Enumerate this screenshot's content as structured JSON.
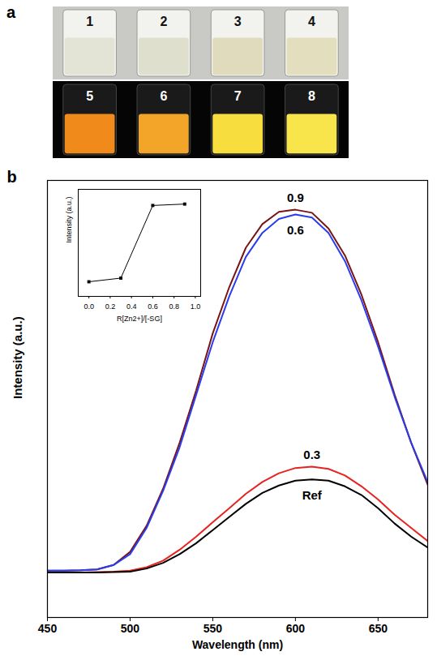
{
  "panel_a": {
    "panel_label": "a",
    "vials": [
      {
        "label": "1",
        "color": "#e4e4d6"
      },
      {
        "label": "2",
        "color": "#dedfcc"
      },
      {
        "label": "3",
        "color": "#e0dbbd"
      },
      {
        "label": "4",
        "color": "#e3dfbe"
      },
      {
        "label": "5",
        "color": "#f08a1a"
      },
      {
        "label": "6",
        "color": "#f3a52a"
      },
      {
        "label": "7",
        "color": "#f7de3e"
      },
      {
        "label": "8",
        "color": "#f8e54c"
      }
    ]
  },
  "chart_data": [
    {
      "type": "line",
      "panel_label": "b",
      "xlabel": "Wavelength (nm)",
      "ylabel": "Intensity (a.u.)",
      "x": [
        450,
        460,
        470,
        480,
        490,
        500,
        510,
        520,
        530,
        540,
        550,
        560,
        570,
        580,
        590,
        600,
        610,
        620,
        630,
        640,
        650,
        660,
        670,
        680
      ],
      "xlim": [
        450,
        680
      ],
      "xticks": [
        450,
        500,
        550,
        600,
        650
      ],
      "ylim": [
        0,
        100
      ],
      "yticks": [],
      "tick_labels": "x",
      "series": [
        {
          "name": "0.9",
          "color": "#7a1414",
          "values": [
            10.7,
            10.7,
            10.8,
            11.0,
            12.0,
            15.0,
            21.0,
            29.5,
            40,
            52,
            65,
            75.6,
            84.6,
            90,
            92.8,
            93.3,
            92.6,
            89,
            82.8,
            73.8,
            63,
            51,
            40,
            30.4
          ]
        },
        {
          "name": "0.6",
          "color": "#2a3cf0",
          "values": [
            10.7,
            10.7,
            10.8,
            11.0,
            12.0,
            14.5,
            20.5,
            29,
            39,
            51,
            63,
            73.5,
            82.5,
            88,
            91.2,
            92.2,
            91.5,
            88,
            81.5,
            72.5,
            62,
            50.5,
            40,
            31
          ]
        },
        {
          "name": "0.3",
          "color": "#e8231f",
          "values": [
            10.3,
            10.3,
            10.3,
            10.4,
            10.5,
            10.7,
            11.5,
            13,
            15.5,
            18.5,
            21.8,
            25,
            28.3,
            31,
            33,
            34.2,
            34.5,
            34,
            32.5,
            30,
            27,
            23.5,
            20.5,
            17.5
          ]
        },
        {
          "name": "Ref",
          "color": "#000000",
          "values": [
            10.3,
            10.3,
            10.3,
            10.3,
            10.4,
            10.5,
            11.2,
            12.5,
            14.5,
            17,
            20,
            23,
            26,
            28.5,
            30.2,
            31.3,
            31.6,
            31.3,
            30,
            28,
            25,
            21.5,
            18.5,
            16
          ]
        }
      ]
    },
    {
      "type": "line",
      "marker": "square",
      "color": "#000000",
      "xlabel": "R[Zn2+]/[-SG]",
      "ylabel": "Intensity (a.u.)",
      "x": [
        0,
        0.3,
        0.6,
        0.9
      ],
      "values": [
        31.6,
        34.5,
        92.2,
        93.3
      ],
      "xlim": [
        -0.1,
        1.05
      ],
      "xticks": [
        {
          "value": 0,
          "label": "0.0"
        },
        0.2,
        0.4,
        0.6,
        0.8,
        {
          "value": 1,
          "label": "1.0"
        }
      ],
      "ylim": [
        20,
        105
      ],
      "yticks": [],
      "tick_labels": "x"
    }
  ]
}
